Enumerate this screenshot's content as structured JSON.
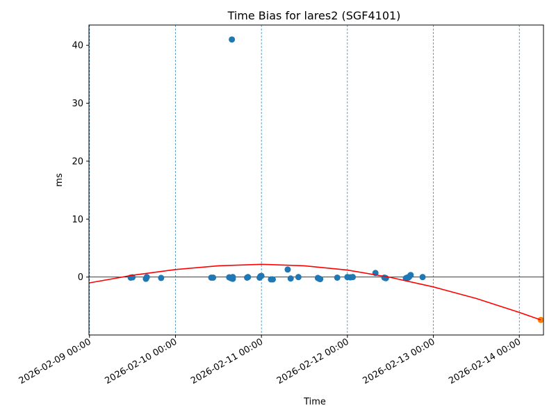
{
  "chart_data": {
    "type": "scatter",
    "title": "Time Bias for lares2 (SGF4101)",
    "xlabel": "Time",
    "ylabel": "ms",
    "xlim": [
      "2026-02-08 23:51",
      "2026-02-14 06:45"
    ],
    "ylim": [
      -10,
      43.5
    ],
    "x_ticks": [
      "2026-02-09 00:00",
      "2026-02-10 00:00",
      "2026-02-11 00:00",
      "2026-02-12 00:00",
      "2026-02-13 00:00",
      "2026-02-14 00:00"
    ],
    "y_ticks": [
      0,
      10,
      20,
      30,
      40
    ],
    "x_tick_rotation": 30,
    "vertical_grid": "dashed at x ticks",
    "horizontal_zero_line": true,
    "legend": "none",
    "series": [
      {
        "type": "scatter",
        "color": "#1f77b4",
        "points": [
          {
            "x": "2026-02-09 11:30",
            "y": -0.1
          },
          {
            "x": "2026-02-09 12:00",
            "y": -0.05
          },
          {
            "x": "2026-02-09 15:45",
            "y": -0.3
          },
          {
            "x": "2026-02-09 16:00",
            "y": 0.0
          },
          {
            "x": "2026-02-09 20:00",
            "y": -0.15
          },
          {
            "x": "2026-02-10 10:00",
            "y": -0.1
          },
          {
            "x": "2026-02-10 10:30",
            "y": -0.1
          },
          {
            "x": "2026-02-10 15:00",
            "y": -0.05
          },
          {
            "x": "2026-02-10 15:30",
            "y": -0.2
          },
          {
            "x": "2026-02-10 15:45",
            "y": 41.0
          },
          {
            "x": "2026-02-10 16:00",
            "y": -0.3
          },
          {
            "x": "2026-02-10 16:00",
            "y": 0.0
          },
          {
            "x": "2026-02-10 20:00",
            "y": -0.1
          },
          {
            "x": "2026-02-10 20:15",
            "y": 0.0
          },
          {
            "x": "2026-02-10 23:30",
            "y": -0.1
          },
          {
            "x": "2026-02-10 23:45",
            "y": 0.15
          },
          {
            "x": "2026-02-11 00:00",
            "y": 0.2
          },
          {
            "x": "2026-02-11 02:40",
            "y": -0.4
          },
          {
            "x": "2026-02-11 03:10",
            "y": -0.4
          },
          {
            "x": "2026-02-11 07:20",
            "y": 1.3
          },
          {
            "x": "2026-02-11 08:10",
            "y": -0.25
          },
          {
            "x": "2026-02-11 10:20",
            "y": 0.0
          },
          {
            "x": "2026-02-11 15:45",
            "y": -0.15
          },
          {
            "x": "2026-02-11 16:10",
            "y": -0.3
          },
          {
            "x": "2026-02-11 16:25",
            "y": -0.35
          },
          {
            "x": "2026-02-11 21:10",
            "y": -0.1
          },
          {
            "x": "2026-02-12 00:00",
            "y": 0.0
          },
          {
            "x": "2026-02-12 00:50",
            "y": -0.05
          },
          {
            "x": "2026-02-12 01:30",
            "y": 0.0
          },
          {
            "x": "2026-02-12 07:50",
            "y": 0.7
          },
          {
            "x": "2026-02-12 10:20",
            "y": -0.1
          },
          {
            "x": "2026-02-12 10:45",
            "y": -0.2
          },
          {
            "x": "2026-02-12 16:20",
            "y": -0.2
          },
          {
            "x": "2026-02-12 16:40",
            "y": -0.1
          },
          {
            "x": "2026-02-12 17:00",
            "y": -0.1
          },
          {
            "x": "2026-02-12 17:20",
            "y": 0.1
          },
          {
            "x": "2026-02-12 17:40",
            "y": 0.35
          },
          {
            "x": "2026-02-12 21:00",
            "y": 0.0
          }
        ]
      },
      {
        "type": "scatter",
        "color": "#ff7f0e",
        "points": [
          {
            "x": "2026-02-14 06:00",
            "y": -7.4
          }
        ]
      },
      {
        "type": "line",
        "color": "#ff0000",
        "points": [
          {
            "x": "2026-02-09 00:00",
            "y": -1.0
          },
          {
            "x": "2026-02-09 12:00",
            "y": 0.3
          },
          {
            "x": "2026-02-10 00:00",
            "y": 1.3
          },
          {
            "x": "2026-02-10 12:00",
            "y": 1.95
          },
          {
            "x": "2026-02-11 00:00",
            "y": 2.2
          },
          {
            "x": "2026-02-11 12:00",
            "y": 1.95
          },
          {
            "x": "2026-02-12 00:00",
            "y": 1.2
          },
          {
            "x": "2026-02-12 12:00",
            "y": -0.05
          },
          {
            "x": "2026-02-13 00:00",
            "y": -1.7
          },
          {
            "x": "2026-02-13 12:00",
            "y": -3.7
          },
          {
            "x": "2026-02-14 00:00",
            "y": -6.1
          },
          {
            "x": "2026-02-14 06:00",
            "y": -7.4
          }
        ]
      }
    ]
  }
}
